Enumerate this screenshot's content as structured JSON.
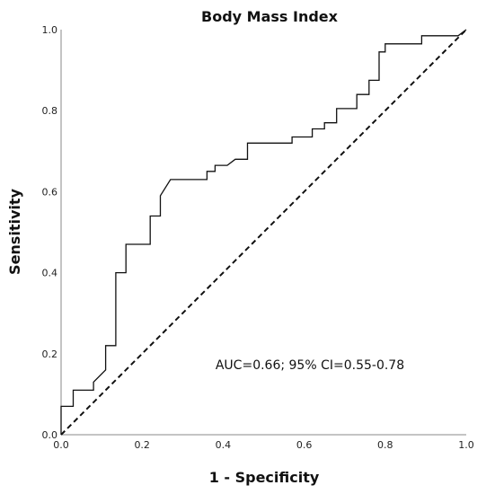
{
  "chart_data": {
    "type": "line",
    "title": "Body Mass Index",
    "xlabel": "1 - Specificity",
    "ylabel": "Sensitivity",
    "xlim": [
      0,
      1
    ],
    "ylim": [
      0,
      1
    ],
    "x_ticks": [
      "0.0",
      "0.2",
      "0.4",
      "0.6",
      "0.8",
      "1.0"
    ],
    "y_ticks": [
      "0.0",
      "0.2",
      "0.4",
      "0.6",
      "0.8",
      "1.0"
    ],
    "grid": false,
    "annotation": "AUC=0.66; 95% CI=0.55-0.78",
    "roc_curve": [
      [
        0,
        0
      ],
      [
        0,
        0.07
      ],
      [
        0.03,
        0.07
      ],
      [
        0.03,
        0.11
      ],
      [
        0.08,
        0.11
      ],
      [
        0.08,
        0.13
      ],
      [
        0.11,
        0.16
      ],
      [
        0.11,
        0.22
      ],
      [
        0.135,
        0.22
      ],
      [
        0.135,
        0.4
      ],
      [
        0.16,
        0.4
      ],
      [
        0.16,
        0.47
      ],
      [
        0.22,
        0.47
      ],
      [
        0.22,
        0.54
      ],
      [
        0.245,
        0.54
      ],
      [
        0.245,
        0.59
      ],
      [
        0.27,
        0.63
      ],
      [
        0.36,
        0.63
      ],
      [
        0.36,
        0.65
      ],
      [
        0.38,
        0.65
      ],
      [
        0.38,
        0.665
      ],
      [
        0.41,
        0.665
      ],
      [
        0.43,
        0.68
      ],
      [
        0.46,
        0.68
      ],
      [
        0.46,
        0.72
      ],
      [
        0.57,
        0.72
      ],
      [
        0.57,
        0.735
      ],
      [
        0.62,
        0.735
      ],
      [
        0.62,
        0.755
      ],
      [
        0.65,
        0.755
      ],
      [
        0.65,
        0.77
      ],
      [
        0.68,
        0.77
      ],
      [
        0.68,
        0.805
      ],
      [
        0.73,
        0.805
      ],
      [
        0.73,
        0.84
      ],
      [
        0.76,
        0.84
      ],
      [
        0.76,
        0.875
      ],
      [
        0.785,
        0.875
      ],
      [
        0.785,
        0.945
      ],
      [
        0.8,
        0.945
      ],
      [
        0.8,
        0.965
      ],
      [
        0.89,
        0.965
      ],
      [
        0.89,
        0.985
      ],
      [
        0.98,
        0.985
      ],
      [
        1.0,
        1.0
      ]
    ],
    "reference_line": [
      [
        0,
        0
      ],
      [
        1,
        1
      ]
    ],
    "colors": {
      "curve": "#111111",
      "reference": "#111111",
      "axis": "#888888"
    }
  }
}
